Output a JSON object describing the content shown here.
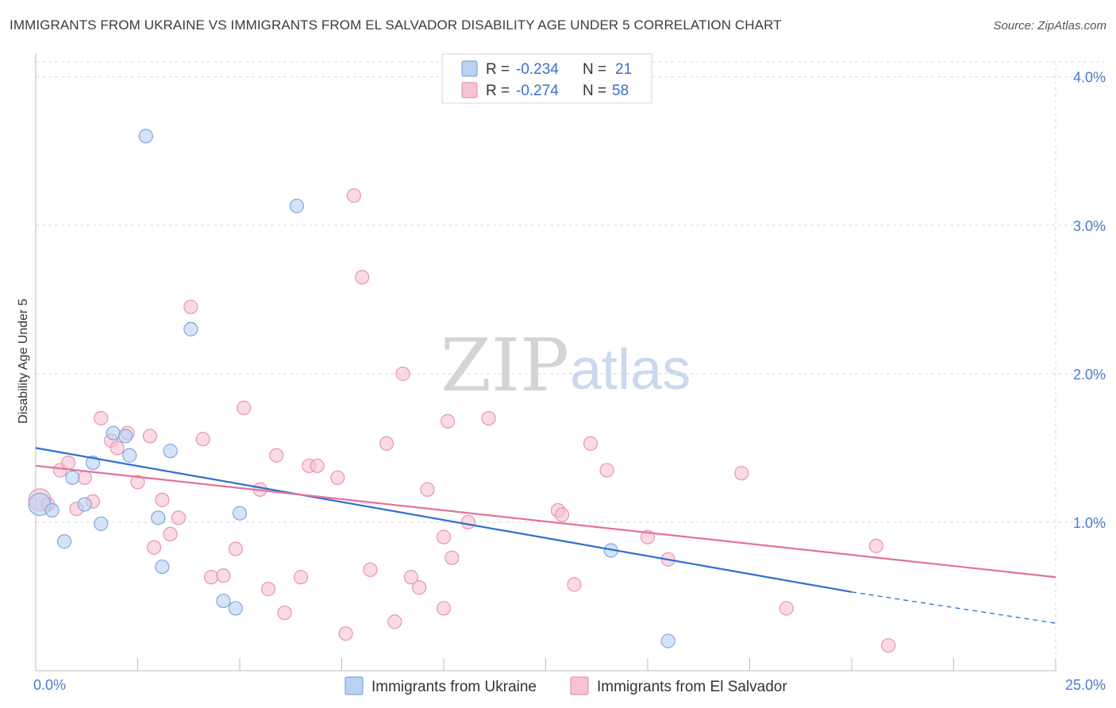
{
  "title": "IMMIGRANTS FROM UKRAINE VS IMMIGRANTS FROM EL SALVADOR DISABILITY AGE UNDER 5 CORRELATION CHART",
  "source": "Source: ZipAtlas.com",
  "watermark": {
    "zip": "ZIP",
    "atlas": "atlas"
  },
  "colors": {
    "ukraine_fill": "#b9d1f3",
    "ukraine_stroke": "#7fa7dd",
    "ukraine_line": "#2f6fd1",
    "elsalvador_fill": "#f7c2d2",
    "elsalvador_stroke": "#e895b0",
    "elsalvador_line": "#e4719a",
    "grid": "#d8d8d8",
    "tick_text": "#4a7cc9"
  },
  "legend": {
    "r_label": "R =",
    "n_label": "N =",
    "series": [
      {
        "r": "-0.234",
        "n": "21"
      },
      {
        "r": "-0.274",
        "n": "58"
      }
    ]
  },
  "chart_data": {
    "type": "scatter",
    "title": "IMMIGRANTS FROM UKRAINE VS IMMIGRANTS FROM EL SALVADOR DISABILITY AGE UNDER 5 CORRELATION CHART",
    "ylabel": "Disability Age Under 5",
    "xlabel": "",
    "xlim": [
      0,
      25
    ],
    "ylim": [
      0,
      4.1
    ],
    "x_ticks": [
      0,
      25
    ],
    "x_tick_labels": [
      "0.0%",
      "25.0%"
    ],
    "y_ticks": [
      1,
      2,
      3,
      4
    ],
    "y_tick_labels": [
      "1.0%",
      "2.0%",
      "3.0%",
      "4.0%"
    ],
    "grid": true,
    "legend_position": "top-center",
    "series": [
      {
        "name": "Immigrants from Ukraine",
        "color": "#7fa7dd",
        "points": [
          [
            0.1,
            1.12
          ],
          [
            0.4,
            1.08
          ],
          [
            0.7,
            0.87
          ],
          [
            0.9,
            1.3
          ],
          [
            1.2,
            1.12
          ],
          [
            1.4,
            1.4
          ],
          [
            1.6,
            0.99
          ],
          [
            1.9,
            1.6
          ],
          [
            2.2,
            1.58
          ],
          [
            2.3,
            1.45
          ],
          [
            2.7,
            3.6
          ],
          [
            3.0,
            1.03
          ],
          [
            3.1,
            0.7
          ],
          [
            3.3,
            1.48
          ],
          [
            3.8,
            2.3
          ],
          [
            4.6,
            0.47
          ],
          [
            4.9,
            0.42
          ],
          [
            5.0,
            1.06
          ],
          [
            6.4,
            3.13
          ],
          [
            14.1,
            0.81
          ],
          [
            15.5,
            0.2
          ]
        ],
        "trend": {
          "x": [
            0,
            20
          ],
          "y": [
            1.5,
            0.53
          ],
          "dashed_extension_to": [
            25,
            0.32
          ]
        }
      },
      {
        "name": "Immigrants from El Salvador",
        "color": "#e895b0",
        "points": [
          [
            0.1,
            1.15
          ],
          [
            0.3,
            1.12
          ],
          [
            0.6,
            1.35
          ],
          [
            0.8,
            1.4
          ],
          [
            1.0,
            1.09
          ],
          [
            1.2,
            1.3
          ],
          [
            1.4,
            1.14
          ],
          [
            1.6,
            1.7
          ],
          [
            1.85,
            1.55
          ],
          [
            2.0,
            1.5
          ],
          [
            2.25,
            1.6
          ],
          [
            2.5,
            1.27
          ],
          [
            2.8,
            1.58
          ],
          [
            2.9,
            0.83
          ],
          [
            3.1,
            1.15
          ],
          [
            3.3,
            0.92
          ],
          [
            3.5,
            1.03
          ],
          [
            3.8,
            2.45
          ],
          [
            4.1,
            1.56
          ],
          [
            4.3,
            0.63
          ],
          [
            4.6,
            0.64
          ],
          [
            4.9,
            0.82
          ],
          [
            5.1,
            1.77
          ],
          [
            5.5,
            1.22
          ],
          [
            5.7,
            0.55
          ],
          [
            5.9,
            1.45
          ],
          [
            6.1,
            0.39
          ],
          [
            6.5,
            0.63
          ],
          [
            6.7,
            1.38
          ],
          [
            6.9,
            1.38
          ],
          [
            7.4,
            1.3
          ],
          [
            7.6,
            0.25
          ],
          [
            7.8,
            3.2
          ],
          [
            8.0,
            2.65
          ],
          [
            8.2,
            0.68
          ],
          [
            8.6,
            1.53
          ],
          [
            8.8,
            0.33
          ],
          [
            9.0,
            2.0
          ],
          [
            9.2,
            0.63
          ],
          [
            9.4,
            0.56
          ],
          [
            9.6,
            1.22
          ],
          [
            10.0,
            0.42
          ],
          [
            10.0,
            0.9
          ],
          [
            10.1,
            1.68
          ],
          [
            10.2,
            0.76
          ],
          [
            10.6,
            1.0
          ],
          [
            11.1,
            1.7
          ],
          [
            12.8,
            1.08
          ],
          [
            12.9,
            1.05
          ],
          [
            13.2,
            0.58
          ],
          [
            13.6,
            1.53
          ],
          [
            14.0,
            1.35
          ],
          [
            15.0,
            0.9
          ],
          [
            15.5,
            0.75
          ],
          [
            17.3,
            1.33
          ],
          [
            18.4,
            0.42
          ],
          [
            20.6,
            0.84
          ],
          [
            20.9,
            0.17
          ]
        ],
        "trend": {
          "x": [
            0,
            25
          ],
          "y": [
            1.38,
            0.63
          ]
        }
      }
    ]
  }
}
